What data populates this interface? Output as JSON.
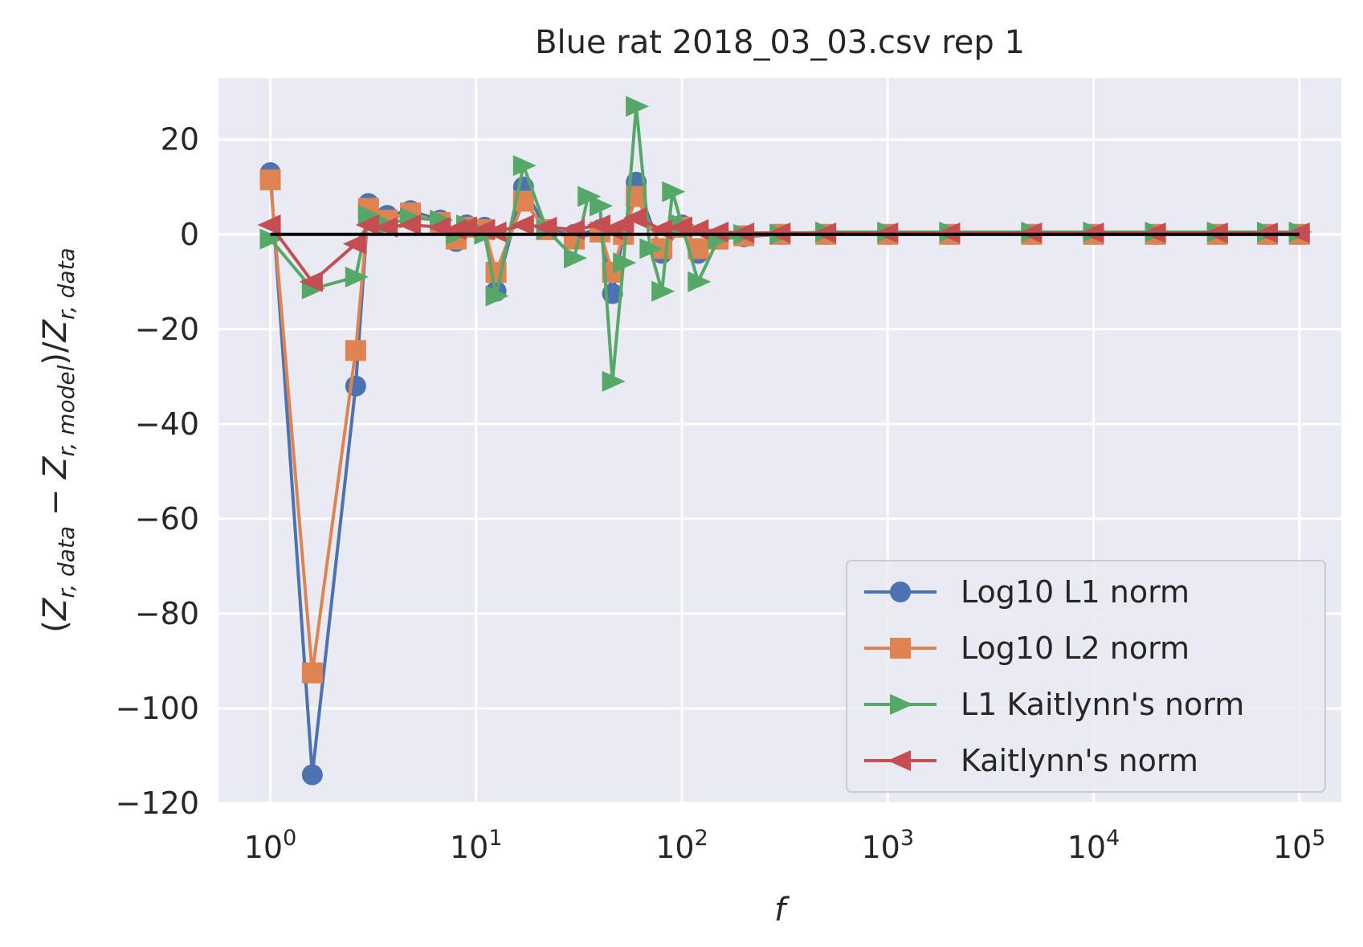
{
  "chart_data": {
    "type": "line",
    "title": "Blue rat 2018_03_03.csv rep 1",
    "xlabel": "f",
    "ylabel": {
      "open": "(",
      "z": "Z",
      "sub_data": "r, data",
      "minus": " − ",
      "sub_model": "r, model",
      "close": ")/",
      "sub_data2": "r, data"
    },
    "x_scale": "log",
    "xlim": [
      0.56,
      160000
    ],
    "ylim": [
      -120,
      33
    ],
    "x_ticks": [
      {
        "value": 1,
        "base": "10",
        "exp": "0"
      },
      {
        "value": 10,
        "base": "10",
        "exp": "1"
      },
      {
        "value": 100,
        "base": "10",
        "exp": "2"
      },
      {
        "value": 1000,
        "base": "10",
        "exp": "3"
      },
      {
        "value": 10000,
        "base": "10",
        "exp": "4"
      },
      {
        "value": 100000,
        "base": "10",
        "exp": "5"
      }
    ],
    "y_ticks": [
      {
        "value": 20,
        "label": "20"
      },
      {
        "value": 0,
        "label": "0"
      },
      {
        "value": -20,
        "label": "−20"
      },
      {
        "value": -40,
        "label": "−40"
      },
      {
        "value": -60,
        "label": "−60"
      },
      {
        "value": -80,
        "label": "−80"
      },
      {
        "value": -100,
        "label": "−100"
      },
      {
        "value": -120,
        "label": "−120"
      }
    ],
    "grid": true,
    "legend_position": "lower-right",
    "reference_line": {
      "y": 0,
      "x_range": [
        1,
        100000
      ],
      "color": "#000000"
    },
    "series": [
      {
        "name": "Log10 L1 norm",
        "marker": "circle",
        "color": "#4c72b0",
        "x": [
          1,
          1.6,
          2.6,
          3,
          3.7,
          4.8,
          6.7,
          8,
          9,
          11,
          12.5,
          17,
          22,
          30,
          40,
          46,
          52,
          60,
          80,
          100,
          120,
          150,
          200,
          300,
          500,
          1000,
          2000,
          5000,
          10000,
          20000,
          40000,
          70000,
          100000
        ],
        "y": [
          13,
          -114,
          -32,
          6.5,
          4,
          5,
          3,
          -1.5,
          2,
          1.5,
          -12,
          10,
          1,
          0,
          1,
          -12.5,
          0,
          11,
          -4,
          2,
          -4,
          -1,
          -0.5,
          0,
          0,
          0,
          0,
          0,
          0,
          0,
          0,
          0,
          0
        ]
      },
      {
        "name": "Log10 L2 norm",
        "marker": "square",
        "color": "#dd8452",
        "x": [
          1,
          1.6,
          2.6,
          3,
          3.7,
          4.8,
          6.7,
          8,
          9,
          11,
          12.5,
          17,
          22,
          30,
          40,
          46,
          52,
          60,
          80,
          100,
          120,
          150,
          200,
          300,
          500,
          1000,
          2000,
          5000,
          10000,
          20000,
          40000,
          70000,
          100000
        ],
        "y": [
          11.5,
          -92.5,
          -24.5,
          5.5,
          3,
          4.5,
          2.5,
          -1,
          1.5,
          1,
          -8,
          7,
          1,
          -1,
          0.5,
          -8,
          0,
          8,
          -3,
          1.5,
          -3,
          -1,
          -0.3,
          0,
          0,
          0,
          0,
          0,
          0,
          0,
          0,
          0,
          0
        ]
      },
      {
        "name": "L1 Kaitlynn's norm",
        "marker": "triangle-right",
        "color": "#55a868",
        "x": [
          1,
          1.6,
          2.6,
          3,
          3.7,
          4.8,
          6.7,
          8,
          9,
          11,
          12.5,
          17,
          22,
          30,
          35,
          40,
          46,
          52,
          60,
          70,
          80,
          90,
          100,
          120,
          150,
          200,
          300,
          500,
          1000,
          2000,
          5000,
          10000,
          20000,
          40000,
          70000,
          100000
        ],
        "y": [
          -1,
          -11.5,
          -9,
          4,
          2,
          3.5,
          3,
          0,
          2,
          0,
          -13,
          14.5,
          1,
          -5,
          8,
          6,
          -31,
          -6,
          27,
          -3,
          -12,
          9,
          2,
          -10,
          -1,
          0,
          0,
          0.5,
          0.5,
          0.5,
          0.5,
          0.5,
          0.5,
          0.5,
          0.5,
          0.5
        ]
      },
      {
        "name": "Kaitlynn's norm",
        "marker": "triangle-left",
        "color": "#c44e52",
        "x": [
          1,
          1.6,
          2.6,
          3,
          3.7,
          4.8,
          6.7,
          8,
          9,
          11,
          12.5,
          17,
          22,
          30,
          40,
          46,
          52,
          60,
          80,
          100,
          120,
          150,
          200,
          300,
          500,
          1000,
          2000,
          5000,
          10000,
          20000,
          40000,
          70000,
          100000
        ],
        "y": [
          2,
          -10,
          -2,
          2,
          1.5,
          2,
          1.5,
          1,
          1.5,
          1,
          0.5,
          2,
          1.5,
          1,
          2,
          1,
          2,
          3.5,
          1,
          1.5,
          1,
          0.5,
          0.3,
          0.3,
          0.3,
          0.3,
          0.3,
          0.3,
          0.3,
          0.3,
          0.3,
          0.3,
          0.3
        ]
      }
    ]
  }
}
